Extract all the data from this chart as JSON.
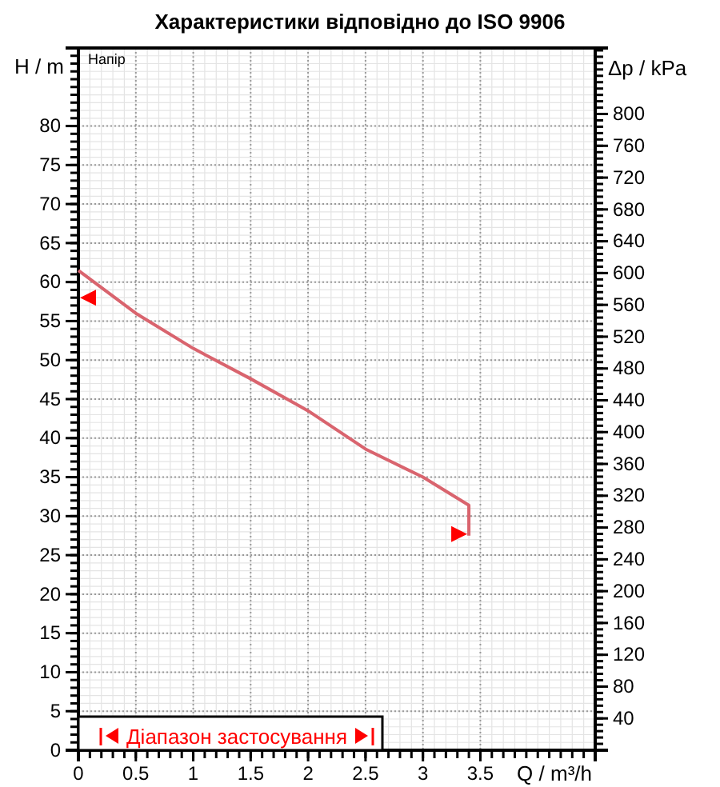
{
  "chart_data": {
    "type": "line",
    "title": "Характеристики відповідно до ISO 9906",
    "xlabel": "Q / m³/h",
    "ylabel": "H / m",
    "y2label": "Δp / kPa",
    "annotations": [
      "Напір",
      "Діапазон застосування"
    ],
    "x": [
      0,
      0.5,
      1,
      1.5,
      2,
      2.5,
      3,
      3.4,
      3.4
    ],
    "series": [
      {
        "color": "#d9646e",
        "values": [
          61.5,
          56,
          51.5,
          47.6,
          43.5,
          38.6,
          35,
          31.4,
          27.5
        ]
      }
    ],
    "xlim": [
      0,
      4.5
    ],
    "xticks": [
      0,
      0.5,
      1,
      1.5,
      2,
      2.5,
      3,
      3.5
    ],
    "ylim": [
      0,
      90
    ],
    "yticks": [
      0,
      5,
      10,
      15,
      20,
      25,
      30,
      35,
      40,
      45,
      50,
      55,
      60,
      65,
      70,
      75,
      80
    ],
    "y2lim": [
      0,
      883
    ],
    "y2ticks": [
      40,
      80,
      120,
      160,
      200,
      240,
      280,
      320,
      360,
      400,
      440,
      480,
      520,
      560,
      600,
      640,
      680,
      720,
      760,
      800
    ],
    "grid": true
  }
}
